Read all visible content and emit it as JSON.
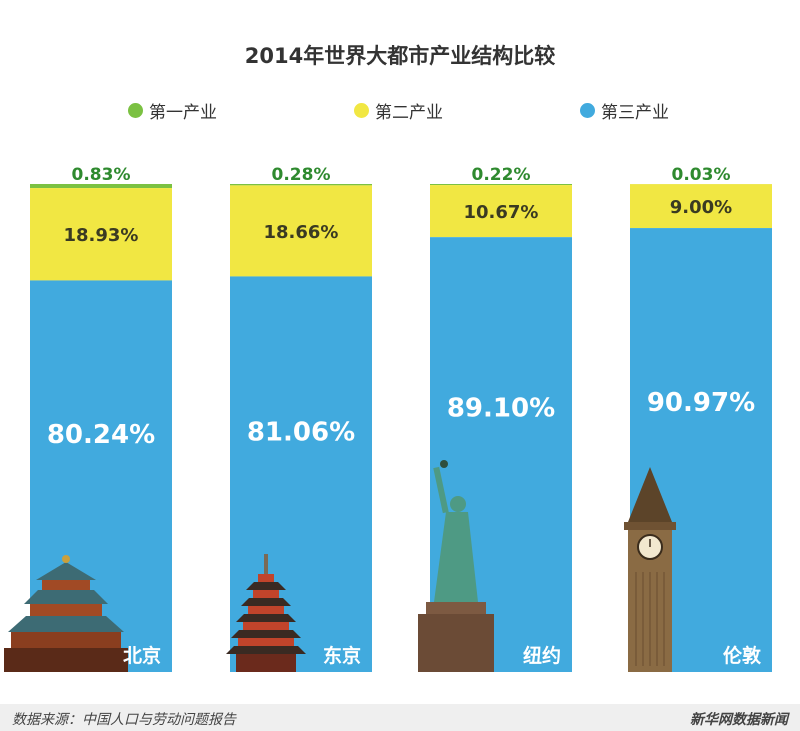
{
  "title": "2014年世界大都市产业结构比较",
  "legend": [
    {
      "label": "第一产业",
      "color": "#7bc142"
    },
    {
      "label": "第二产业",
      "color": "#f1e743"
    },
    {
      "label": "第三产业",
      "color": "#41aade"
    }
  ],
  "chart_data": {
    "type": "bar",
    "stacked": true,
    "percent": true,
    "categories": [
      "北京",
      "东京",
      "纽约",
      "伦敦"
    ],
    "series": [
      {
        "name": "第一产业",
        "values": [
          0.83,
          0.28,
          0.22,
          0.03
        ],
        "labels": [
          "0.83%",
          "0.28%",
          "0.22%",
          "0.03%"
        ],
        "color": "#7bc142"
      },
      {
        "name": "第二产业",
        "values": [
          18.93,
          18.66,
          10.67,
          9.0
        ],
        "labels": [
          "18.93%",
          "18.66%",
          "10.67%",
          "9.00%"
        ],
        "color": "#f1e743"
      },
      {
        "name": "第三产业",
        "values": [
          80.24,
          81.06,
          89.1,
          90.97
        ],
        "labels": [
          "80.24%",
          "81.06%",
          "89.10%",
          "90.97%"
        ],
        "color": "#41aade"
      }
    ],
    "ylim": [
      0,
      100
    ],
    "landmark_icons": [
      "temple-of-heaven-icon",
      "pagoda-icon",
      "statue-of-liberty-icon",
      "big-ben-icon"
    ]
  },
  "footer": {
    "source": "数据来源：中国人口与劳动问题报告",
    "brand": "新华网数据新闻"
  }
}
